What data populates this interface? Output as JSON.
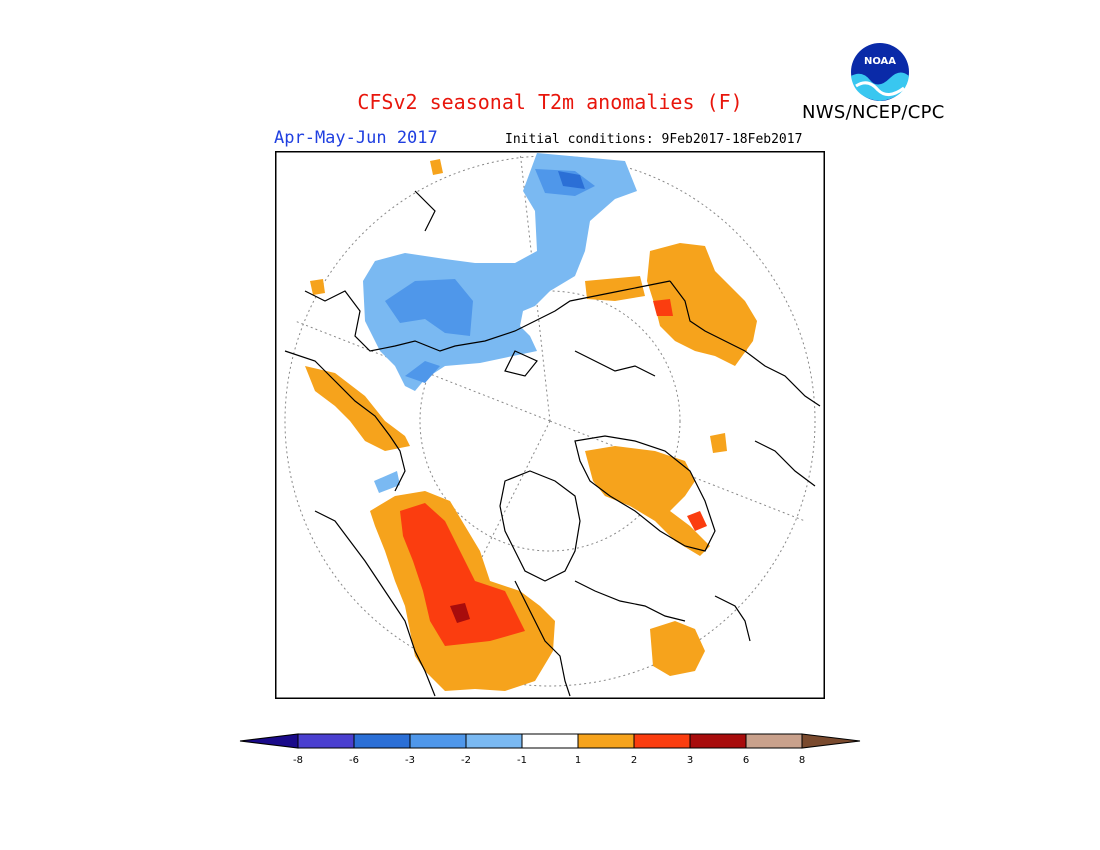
{
  "header": {
    "title": "CFSv2 seasonal T2m anomalies (F)",
    "agency": "NWS/NCEP/CPC",
    "logo_text": "NOAA",
    "season": "Apr-May-Jun 2017",
    "initial_conditions": "Initial conditions: 9Feb2017-18Feb2017"
  },
  "colorbar": {
    "ticks": [
      "-8",
      "-6",
      "-3",
      "-2",
      "-1",
      "1",
      "2",
      "3",
      "6",
      "8"
    ],
    "colors": [
      "#1a0a8a",
      "#4a3fcf",
      "#2b6fd6",
      "#4f97ea",
      "#7ab9f2",
      "#ffffff",
      "#f6a31c",
      "#fb3d0f",
      "#a80c0c",
      "#c9a18c",
      "#7a4a2e"
    ]
  },
  "colors": {
    "title": "#e8160c",
    "season": "#1f3fe0",
    "coastline": "#000000",
    "gridline": "#888888"
  }
}
